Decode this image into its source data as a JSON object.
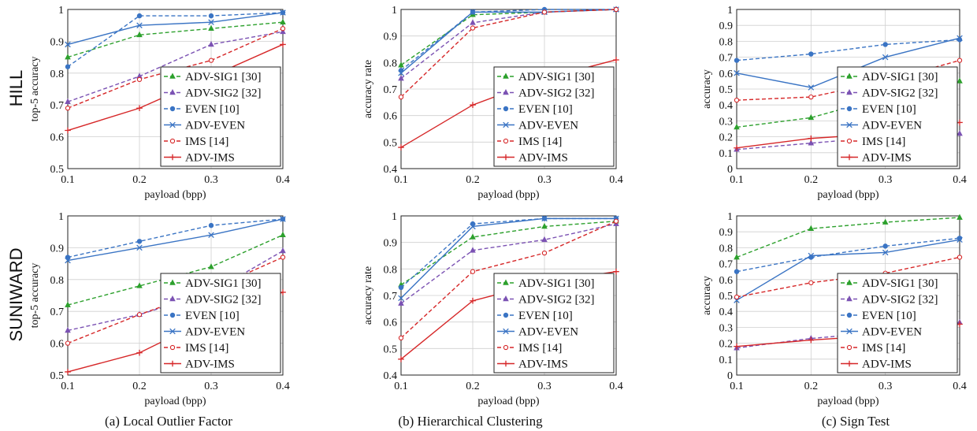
{
  "row_labels": [
    "HILL",
    "SUNIWARD"
  ],
  "captions": [
    "(a)  Local Outlier Factor",
    "(b)  Hierarchical Clustering",
    "(c)  Sign Test"
  ],
  "series_styles": [
    {
      "name": "ADV-SIG1 [30]",
      "color": "#2ca02c",
      "dash": true,
      "marker": "triangle-up"
    },
    {
      "name": "ADV-SIG2 [32]",
      "color": "#7b52b3",
      "dash": true,
      "marker": "triangle-up"
    },
    {
      "name": "EVEN [10]",
      "color": "#3a74c4",
      "dash": true,
      "marker": "circle-filled"
    },
    {
      "name": "ADV-EVEN",
      "color": "#3a74c4",
      "dash": false,
      "marker": "x"
    },
    {
      "name": "IMS [14]",
      "color": "#d62728",
      "dash": true,
      "marker": "circle-open"
    },
    {
      "name": "ADV-IMS",
      "color": "#d62728",
      "dash": false,
      "marker": "plus"
    }
  ],
  "chart_data": [
    {
      "type": "line",
      "row": "HILL",
      "column": "(a)  Local Outlier Factor",
      "xlabel": "payload (bpp)",
      "ylabel": "top-5 accuracy",
      "x": [
        0.1,
        0.2,
        0.3,
        0.4
      ],
      "xlim": [
        0.1,
        0.4
      ],
      "ylim": [
        0.5,
        1.0
      ],
      "xticks": [
        "0.1",
        "0.2",
        "0.3",
        "0.4"
      ],
      "yticks": [
        "0.5",
        "0.6",
        "0.7",
        "0.8",
        "0.9",
        "1"
      ],
      "grid": true,
      "legend": "bottom-right",
      "series": [
        {
          "name": "ADV-SIG1 [30]",
          "values": [
            0.85,
            0.92,
            0.94,
            0.96
          ]
        },
        {
          "name": "ADV-SIG2 [32]",
          "values": [
            0.71,
            0.79,
            0.89,
            0.93
          ]
        },
        {
          "name": "EVEN [10]",
          "values": [
            0.82,
            0.98,
            0.98,
            0.99
          ]
        },
        {
          "name": "ADV-EVEN",
          "values": [
            0.89,
            0.95,
            0.96,
            0.99
          ]
        },
        {
          "name": "IMS [14]",
          "values": [
            0.69,
            0.78,
            0.84,
            0.94
          ]
        },
        {
          "name": "ADV-IMS",
          "values": [
            0.62,
            0.69,
            0.79,
            0.89
          ]
        }
      ]
    },
    {
      "type": "line",
      "row": "HILL",
      "column": "(b)  Hierarchical Clustering",
      "xlabel": "payload (bpp)",
      "ylabel": "accuracy rate",
      "x": [
        0.1,
        0.2,
        0.3,
        0.4
      ],
      "xlim": [
        0.1,
        0.4
      ],
      "ylim": [
        0.4,
        1.0
      ],
      "xticks": [
        "0.1",
        "0.2",
        "0.3",
        "0.4"
      ],
      "yticks": [
        "0.4",
        "0.5",
        "0.6",
        "0.7",
        "0.8",
        "0.9",
        "1"
      ],
      "grid": true,
      "legend": "bottom-right",
      "series": [
        {
          "name": "ADV-SIG1 [30]",
          "values": [
            0.79,
            0.98,
            0.99,
            1.0
          ]
        },
        {
          "name": "ADV-SIG2 [32]",
          "values": [
            0.74,
            0.95,
            0.99,
            1.0
          ]
        },
        {
          "name": "EVEN [10]",
          "values": [
            0.77,
            0.99,
            1.0,
            1.0
          ]
        },
        {
          "name": "ADV-EVEN",
          "values": [
            0.76,
            0.99,
            0.99,
            1.0
          ]
        },
        {
          "name": "IMS [14]",
          "values": [
            0.67,
            0.93,
            0.99,
            1.0
          ]
        },
        {
          "name": "ADV-IMS",
          "values": [
            0.48,
            0.64,
            0.74,
            0.81
          ]
        }
      ]
    },
    {
      "type": "line",
      "row": "HILL",
      "column": "(c)  Sign Test",
      "xlabel": "payload (bpp)",
      "ylabel": "accuracy",
      "x": [
        0.1,
        0.2,
        0.3,
        0.4
      ],
      "xlim": [
        0.1,
        0.4
      ],
      "ylim": [
        0.0,
        1.0
      ],
      "xticks": [
        "0.1",
        "0.2",
        "0.3",
        "0.4"
      ],
      "yticks": [
        "0",
        "0.1",
        "0.2",
        "0.3",
        "0.4",
        "0.5",
        "0.6",
        "0.7",
        "0.8",
        "0.9",
        "1"
      ],
      "grid": true,
      "legend": "bottom-right",
      "series": [
        {
          "name": "ADV-SIG1 [30]",
          "values": [
            0.26,
            0.32,
            0.45,
            0.55
          ]
        },
        {
          "name": "ADV-SIG2 [32]",
          "values": [
            0.12,
            0.16,
            0.2,
            0.22
          ]
        },
        {
          "name": "EVEN [10]",
          "values": [
            0.68,
            0.72,
            0.78,
            0.81
          ]
        },
        {
          "name": "ADV-EVEN",
          "values": [
            0.6,
            0.51,
            0.7,
            0.82
          ]
        },
        {
          "name": "IMS [14]",
          "values": [
            0.43,
            0.45,
            0.55,
            0.68
          ]
        },
        {
          "name": "ADV-IMS",
          "values": [
            0.13,
            0.19,
            0.22,
            0.29
          ]
        }
      ]
    },
    {
      "type": "line",
      "row": "SUNIWARD",
      "column": "(a)  Local Outlier Factor",
      "xlabel": "payload (bpp)",
      "ylabel": "top-5 accuracy",
      "x": [
        0.1,
        0.2,
        0.3,
        0.4
      ],
      "xlim": [
        0.1,
        0.4
      ],
      "ylim": [
        0.5,
        1.0
      ],
      "xticks": [
        "0.1",
        "0.2",
        "0.3",
        "0.4"
      ],
      "yticks": [
        "0.5",
        "0.6",
        "0.7",
        "0.8",
        "0.9",
        "1"
      ],
      "grid": true,
      "legend": "bottom-right",
      "series": [
        {
          "name": "ADV-SIG1 [30]",
          "values": [
            0.72,
            0.78,
            0.84,
            0.94
          ]
        },
        {
          "name": "ADV-SIG2 [32]",
          "values": [
            0.64,
            0.69,
            0.76,
            0.89
          ]
        },
        {
          "name": "EVEN [10]",
          "values": [
            0.87,
            0.92,
            0.97,
            0.99
          ]
        },
        {
          "name": "ADV-EVEN",
          "values": [
            0.86,
            0.9,
            0.94,
            0.99
          ]
        },
        {
          "name": "IMS [14]",
          "values": [
            0.6,
            0.69,
            0.77,
            0.87
          ]
        },
        {
          "name": "ADV-IMS",
          "values": [
            0.51,
            0.57,
            0.68,
            0.76
          ]
        }
      ]
    },
    {
      "type": "line",
      "row": "SUNIWARD",
      "column": "(b)  Hierarchical Clustering",
      "xlabel": "payload (bpp)",
      "ylabel": "accuracy rate",
      "x": [
        0.1,
        0.2,
        0.3,
        0.4
      ],
      "xlim": [
        0.1,
        0.4
      ],
      "ylim": [
        0.4,
        1.0
      ],
      "xticks": [
        "0.1",
        "0.2",
        "0.3",
        "0.4"
      ],
      "yticks": [
        "0.4",
        "0.5",
        "0.6",
        "0.7",
        "0.8",
        "0.9",
        "1"
      ],
      "grid": true,
      "legend": "bottom-right",
      "series": [
        {
          "name": "ADV-SIG1 [30]",
          "values": [
            0.74,
            0.92,
            0.96,
            0.98
          ]
        },
        {
          "name": "ADV-SIG2 [32]",
          "values": [
            0.67,
            0.87,
            0.91,
            0.97
          ]
        },
        {
          "name": "EVEN [10]",
          "values": [
            0.73,
            0.97,
            0.99,
            0.99
          ]
        },
        {
          "name": "ADV-EVEN",
          "values": [
            0.69,
            0.96,
            0.99,
            0.99
          ]
        },
        {
          "name": "IMS [14]",
          "values": [
            0.54,
            0.79,
            0.86,
            0.98
          ]
        },
        {
          "name": "ADV-IMS",
          "values": [
            0.46,
            0.68,
            0.75,
            0.79
          ]
        }
      ]
    },
    {
      "type": "line",
      "row": "SUNIWARD",
      "column": "(c)  Sign Test",
      "xlabel": "payload (bpp)",
      "ylabel": "accuracy",
      "x": [
        0.1,
        0.2,
        0.3,
        0.4
      ],
      "xlim": [
        0.1,
        0.4
      ],
      "ylim": [
        0.0,
        1.0
      ],
      "xticks": [
        "0.1",
        "0.2",
        "0.3",
        "0.4"
      ],
      "yticks": [
        "0",
        "0.1",
        "0.2",
        "0.3",
        "0.4",
        "0.5",
        "0.6",
        "0.7",
        "0.8",
        "0.9",
        "1"
      ],
      "grid": true,
      "legend": "bottom-right",
      "series": [
        {
          "name": "ADV-SIG1 [30]",
          "values": [
            0.74,
            0.92,
            0.96,
            0.99
          ]
        },
        {
          "name": "ADV-SIG2 [32]",
          "values": [
            0.17,
            0.23,
            0.27,
            0.33
          ]
        },
        {
          "name": "EVEN [10]",
          "values": [
            0.65,
            0.74,
            0.81,
            0.86
          ]
        },
        {
          "name": "ADV-EVEN",
          "values": [
            0.47,
            0.75,
            0.77,
            0.85
          ]
        },
        {
          "name": "IMS [14]",
          "values": [
            0.49,
            0.58,
            0.64,
            0.74
          ]
        },
        {
          "name": "ADV-IMS",
          "values": [
            0.18,
            0.22,
            0.25,
            0.32
          ]
        }
      ]
    }
  ]
}
